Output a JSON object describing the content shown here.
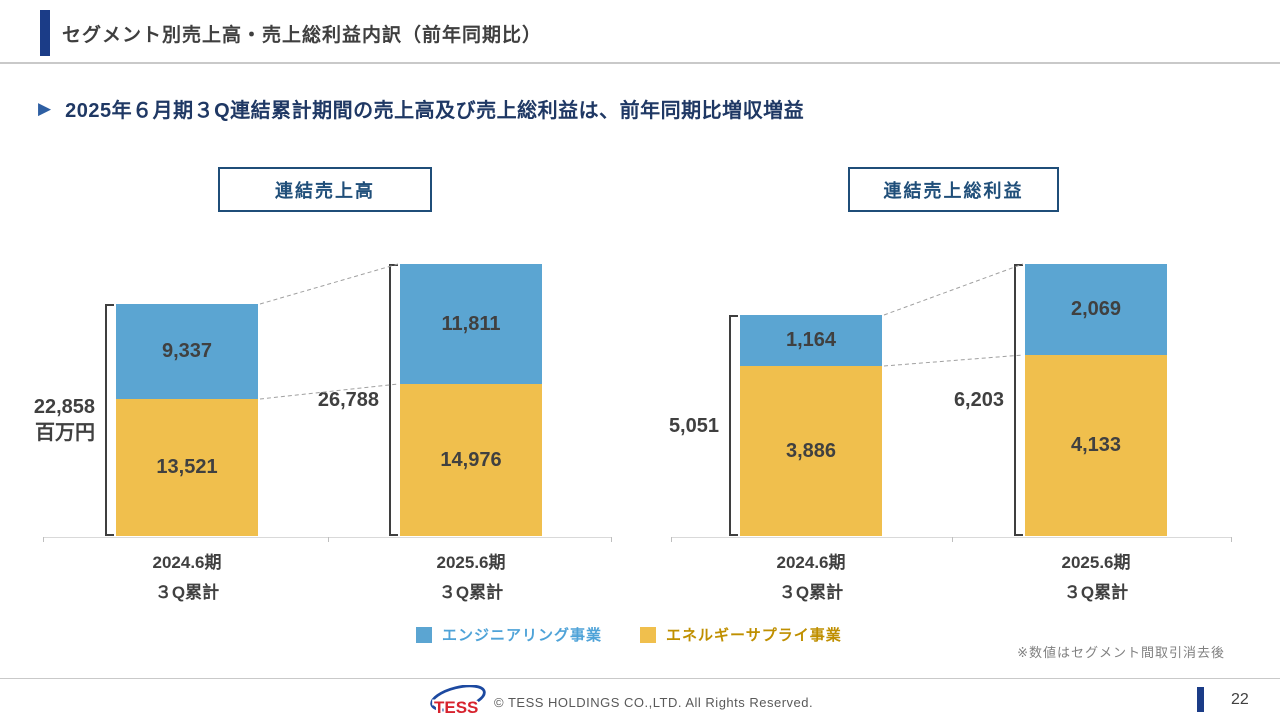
{
  "header": {
    "title": "セグメント別売上高・売上総利益内訳（前年同期比）"
  },
  "subtitle": {
    "bullet": "▶",
    "text": "2025年６月期３Q連結累計期間の売上高及び売上総利益は、前年同期比増収増益"
  },
  "charts": [
    {
      "box_title": "連結売上高"
    },
    {
      "box_title": "連結売上総利益"
    }
  ],
  "legend": {
    "items": [
      {
        "label": "エンジニアリング事業",
        "color": "#5ba5d2",
        "text_color": "#4fa3d8"
      },
      {
        "label": "エネルギーサプライ事業",
        "color": "#f0bf4d",
        "text_color": "#bf8f00"
      }
    ]
  },
  "note": "※数値はセグメント間取引消去後",
  "footer": {
    "logo_text": "TESS",
    "copyright": "© TESS HOLDINGS CO.,LTD. All Rights Reserved.",
    "page_number": "22"
  },
  "colors": {
    "accent_navy": "#1b3c87",
    "box_border_navy": "#1f4e79",
    "subtitle_navy": "#1f3864",
    "bar_blue": "#5ba5d2",
    "bar_orange": "#f0bf4d",
    "value_text": "#404040",
    "note_gray": "#808080"
  },
  "chart_data": [
    {
      "type": "bar",
      "stacked": true,
      "title": "連結売上高",
      "unit": "百万円",
      "categories": [
        "2024.6期 ３Q累計",
        "2025.6期 ３Q累計"
      ],
      "series": [
        {
          "name": "エンジニアリング事業",
          "values": [
            9337,
            11811
          ],
          "color": "#5ba5d2"
        },
        {
          "name": "エネルギーサプライ事業",
          "values": [
            13521,
            14976
          ],
          "color": "#f0bf4d"
        }
      ],
      "totals": [
        22858,
        26788
      ],
      "grid": false,
      "legend_position": "bottom"
    },
    {
      "type": "bar",
      "stacked": true,
      "title": "連結売上総利益",
      "unit": "百万円",
      "categories": [
        "2024.6期 ３Q累計",
        "2025.6期 ３Q累計"
      ],
      "series": [
        {
          "name": "エンジニアリング事業",
          "values": [
            1164,
            2069
          ],
          "color": "#5ba5d2"
        },
        {
          "name": "エネルギーサプライ事業",
          "values": [
            3886,
            4133
          ],
          "color": "#f0bf4d"
        }
      ],
      "totals": [
        5051,
        6203
      ],
      "grid": false,
      "legend_position": "bottom"
    }
  ]
}
